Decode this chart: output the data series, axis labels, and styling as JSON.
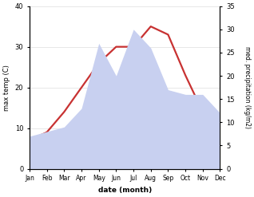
{
  "months": [
    "Jan",
    "Feb",
    "Mar",
    "Apr",
    "May",
    "Jun",
    "Jul",
    "Aug",
    "Sep",
    "Oct",
    "Nov",
    "Dec"
  ],
  "temp": [
    7,
    9,
    14,
    20,
    26,
    30,
    30,
    35,
    33,
    23,
    14,
    10
  ],
  "precip": [
    7,
    8,
    9,
    13,
    27,
    20,
    30,
    26,
    17,
    16,
    16,
    12
  ],
  "temp_color": "#c83232",
  "precip_fill_color": "#c8d0f0",
  "temp_ylim": [
    0,
    40
  ],
  "precip_ylim": [
    0,
    35
  ],
  "temp_yticks": [
    0,
    10,
    20,
    30,
    40
  ],
  "precip_yticks": [
    0,
    5,
    10,
    15,
    20,
    25,
    30,
    35
  ],
  "xlabel": "date (month)",
  "ylabel_left": "max temp (C)",
  "ylabel_right": "med. precipitation (kg/m2)",
  "background_color": "#ffffff"
}
